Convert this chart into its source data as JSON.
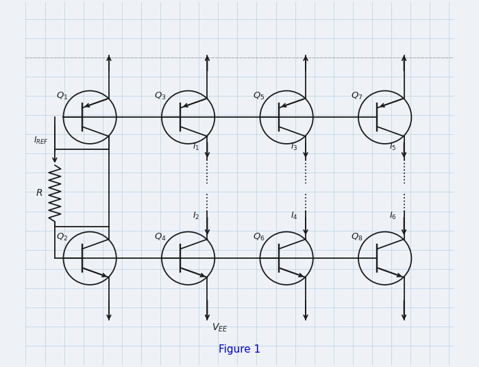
{
  "bg_color": "#eef2f7",
  "grid_color": "#b8cfe0",
  "line_color": "#1a1a1a",
  "figure_label_color": "#0000cc",
  "q_labels_top": [
    "Q_1",
    "Q_3",
    "Q_5",
    "Q_7"
  ],
  "q_labels_bot": [
    "Q_2",
    "Q_4",
    "Q_6",
    "Q_8"
  ],
  "i_labels_odd": [
    "I_1",
    "I_3",
    "I_5"
  ],
  "i_labels_even": [
    "I_2",
    "I_4",
    "I_6"
  ],
  "figsize": [
    6.99,
    5.36
  ],
  "dpi": 100
}
